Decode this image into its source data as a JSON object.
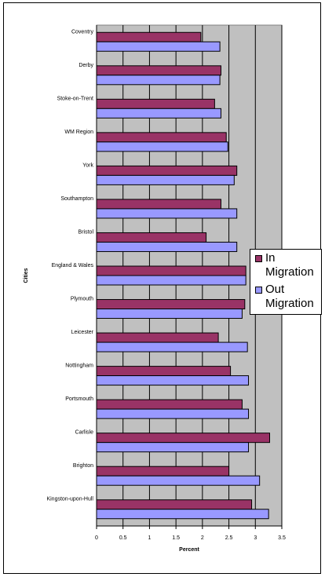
{
  "chart_data": {
    "type": "bar",
    "orientation": "horizontal",
    "categories": [
      "Coventry",
      "Derby",
      "Stoke-on-Trent",
      "WM Region",
      "York",
      "Southampton",
      "Bristol",
      "England & Wales",
      "Plymouth",
      "Leicester",
      "Nottingham",
      "Portsmouth",
      "Carlisle",
      "Brighton",
      "Kingston-upon-Hull"
    ],
    "series": [
      {
        "name": "In Migration",
        "color": "#993366",
        "values": [
          1.97,
          2.35,
          2.23,
          2.45,
          2.65,
          2.35,
          2.07,
          2.82,
          2.8,
          2.3,
          2.53,
          2.75,
          3.27,
          2.5,
          2.93
        ]
      },
      {
        "name": "Out Migration",
        "color": "#9999ff",
        "values": [
          2.33,
          2.33,
          2.35,
          2.48,
          2.6,
          2.65,
          2.65,
          2.82,
          2.75,
          2.85,
          2.87,
          2.87,
          2.87,
          3.08,
          3.25
        ]
      }
    ],
    "xlabel": "Percent",
    "ylabel": "Cities",
    "xlim": [
      0,
      3.5
    ],
    "xticks": [
      "0",
      "0.5",
      "1",
      "1.5",
      "2",
      "2.5",
      "3",
      "3.5"
    ],
    "grid": "vertical",
    "plot_background": "#c0c0c0",
    "legend_position": "right"
  }
}
